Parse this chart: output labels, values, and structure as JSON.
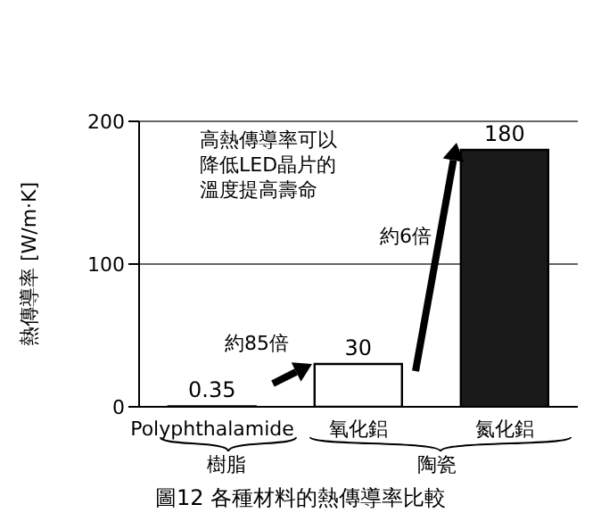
{
  "chart_data": {
    "type": "bar",
    "title": "圖12 各種材料的熱傳導率比較",
    "ylabel": "熱傳導率 [W/m·K]",
    "categories": [
      "Polyphthalamide",
      "氧化鋁",
      "氮化鋁"
    ],
    "values": [
      0.35,
      30,
      180
    ],
    "colors": [
      "#ffffff",
      "#ffffff",
      "#1a1a1a"
    ],
    "ylim": [
      0,
      200
    ],
    "yticks": [
      0,
      100,
      200
    ],
    "grid": "y",
    "data_labels": true,
    "annotations": [
      "高熱傳導率可以降低LED晶片的溫度提高壽命",
      "約85倍",
      "約6倍",
      "樹脂",
      "陶瓷"
    ]
  }
}
